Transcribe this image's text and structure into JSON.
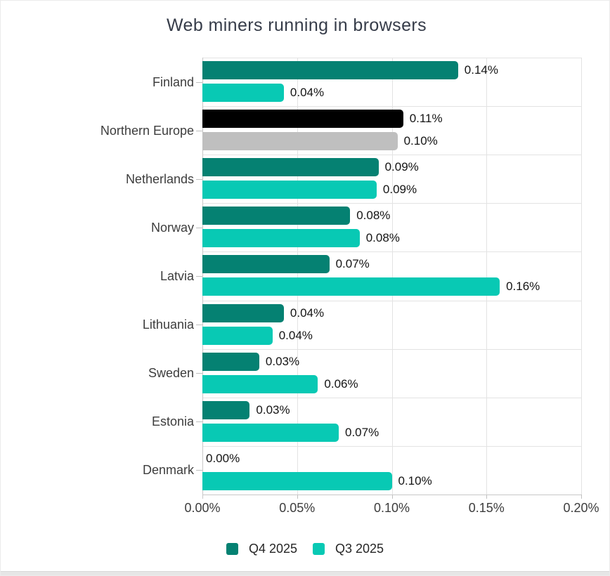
{
  "title": "Web miners running in browsers",
  "legend": {
    "items": [
      {
        "id": "q4",
        "label": "Q4 2025"
      },
      {
        "id": "q3",
        "label": "Q3 2025"
      }
    ]
  },
  "colors": {
    "q4_series": "#058172",
    "q3_series": "#08c9b4",
    "highlight_q4": "#000000",
    "highlight_q3": "#bfbfbf",
    "gridline": "#e3e3e3",
    "axis_line": "#c8c8c8",
    "tick_mark": "#c0c0c0",
    "axis_label_text": "#3d3d3d",
    "value_label_text": "#141414",
    "title_text": "#363c49",
    "legend_text": "#262626",
    "background": "#ffffff",
    "page_border": "#ebebeb",
    "bottom_edge": "#e6e6e6"
  },
  "x_axis": {
    "tick_labels": [
      "0.00%",
      "0.05%",
      "0.10%",
      "0.15%",
      "0.20%"
    ],
    "min": 0,
    "max": 0.2
  },
  "chart_data": {
    "type": "bar",
    "orientation": "horizontal",
    "title": "Web miners running in browsers",
    "categories": [
      "Finland",
      "Northern Europe",
      "Netherlands",
      "Norway",
      "Latvia",
      "Lithuania",
      "Sweden",
      "Estonia",
      "Denmark"
    ],
    "series": [
      {
        "name": "Q4 2025",
        "values": [
          0.135,
          0.106,
          0.093,
          0.078,
          0.067,
          0.043,
          0.03,
          0.025,
          0.0
        ],
        "labels": [
          "0.14%",
          "0.11%",
          "0.09%",
          "0.08%",
          "0.07%",
          "0.04%",
          "0.03%",
          "0.03%",
          "0.00%"
        ]
      },
      {
        "name": "Q3 2025",
        "values": [
          0.043,
          0.103,
          0.092,
          0.083,
          0.157,
          0.037,
          0.061,
          0.072,
          0.1
        ],
        "labels": [
          "0.04%",
          "0.10%",
          "0.09%",
          "0.08%",
          "0.16%",
          "0.04%",
          "0.06%",
          "0.07%",
          "0.10%"
        ]
      }
    ],
    "highlight_category": "Northern Europe",
    "xlim": [
      0,
      0.2
    ],
    "x_tick_labels": [
      "0.00%",
      "0.05%",
      "0.10%",
      "0.15%",
      "0.20%"
    ],
    "grid": true,
    "legend_position": "bottom",
    "value_labels": "outside-end"
  }
}
